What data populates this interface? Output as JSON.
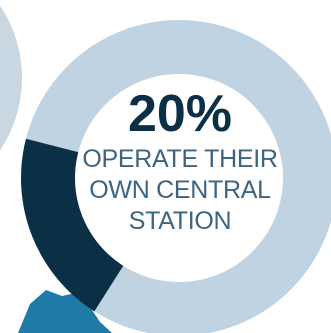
{
  "colors": {
    "highlight": "#0b2f45",
    "remainder": "#c0d3e2",
    "neighbor_left": "#c9d7e3",
    "accent_fragment": "#1f7aa8",
    "caption": "#3d6480"
  },
  "chart_data": {
    "type": "pie",
    "style": "donut",
    "slices": [
      {
        "value": 20,
        "color": "#0b2f45"
      },
      {
        "value": 80,
        "color": "#c0d3e2"
      }
    ],
    "center_label": {
      "value": "20%",
      "lines": [
        "OPERATE THEIR",
        "OWN CENTRAL",
        "STATION"
      ]
    }
  }
}
